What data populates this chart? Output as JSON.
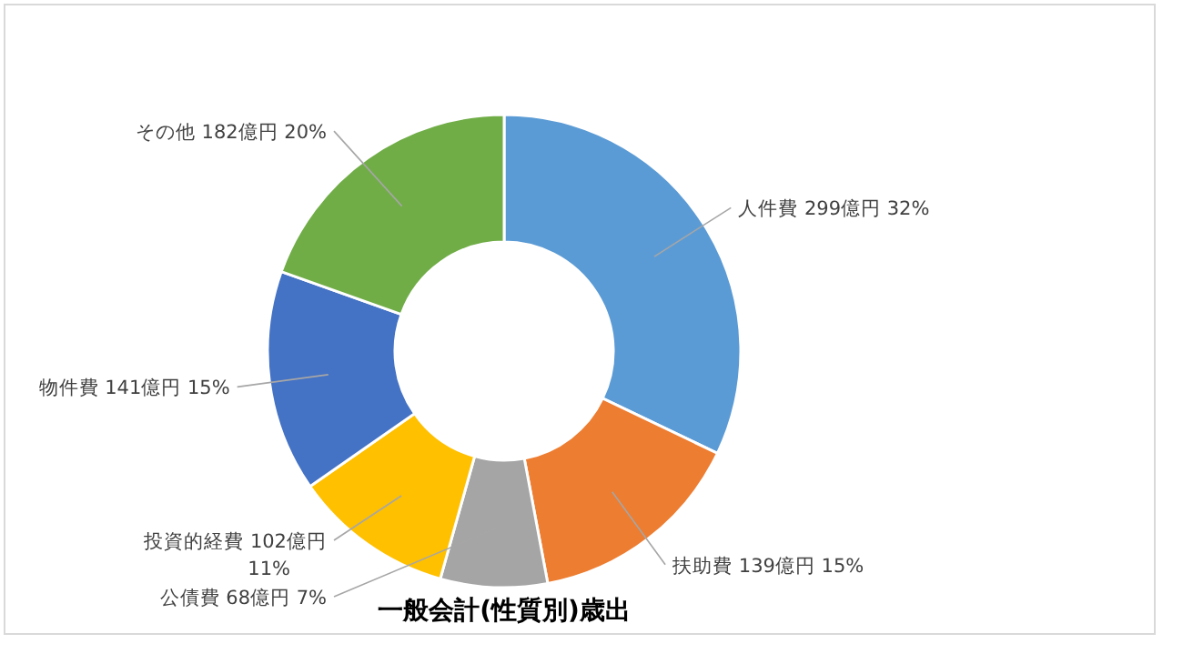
{
  "chart_data": {
    "type": "donut",
    "title": "一般会計(性質別)歳出",
    "categories": [
      "人件費",
      "扶助費",
      "公債費",
      "投資的経費",
      "物件費",
      "その他"
    ],
    "values": [
      299,
      139,
      68,
      102,
      141,
      182
    ],
    "value_labels": [
      "299億円 32%",
      "139億円 15%",
      "68億円 7%",
      "102億円\n11%",
      "141億円 15%",
      "182億円 20%"
    ],
    "colors": [
      "#5b9bd5",
      "#ed7d31",
      "#a5a5a5",
      "#ffc000",
      "#4472c4",
      "#70ad47"
    ]
  }
}
